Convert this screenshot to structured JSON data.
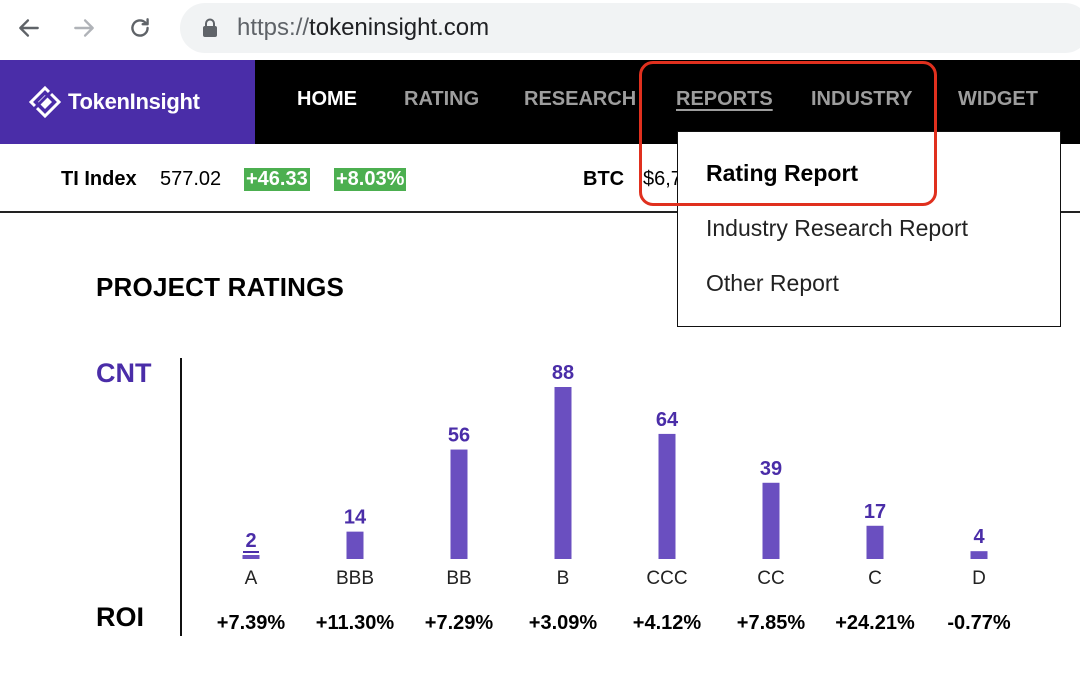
{
  "browser": {
    "url_scheme": "https://",
    "url_host": "tokeninsight.com",
    "icons": [
      "back-arrow-icon",
      "forward-arrow-icon",
      "reload-icon",
      "lock-icon"
    ]
  },
  "header": {
    "logo_text": "TokenInsight",
    "nav": [
      "HOME",
      "RATING",
      "RESEARCH",
      "REPORTS",
      "INDUSTRY",
      "WIDGET"
    ],
    "active": "HOME"
  },
  "ticker": {
    "ti_label": "TI Index",
    "ti_value": "577.02",
    "ti_change": "+46.33",
    "ti_pct": "+8.03%",
    "btc_label": "BTC",
    "btc_value": "$6,7"
  },
  "dropdown": {
    "items": [
      "Rating Report",
      "Industry Research Report",
      "Other Report"
    ]
  },
  "section": {
    "title": "PROJECT RATINGS",
    "cnt_label": "CNT",
    "roi_label": "ROI"
  },
  "colors": {
    "brand": "#4a2da8",
    "bar": "#6a4fc0",
    "positive": "#4caf50",
    "highlight": "#e0301e"
  },
  "chart_data": {
    "type": "bar",
    "categories": [
      "A",
      "BBB",
      "BB",
      "B",
      "CCC",
      "CC",
      "C",
      "D"
    ],
    "values": [
      2,
      14,
      56,
      88,
      64,
      39,
      17,
      4
    ],
    "roi": [
      "+7.39%",
      "+11.30%",
      "+7.29%",
      "+3.09%",
      "+4.12%",
      "+7.85%",
      "+24.21%",
      "-0.77%"
    ],
    "ylim": [
      0,
      88
    ]
  }
}
